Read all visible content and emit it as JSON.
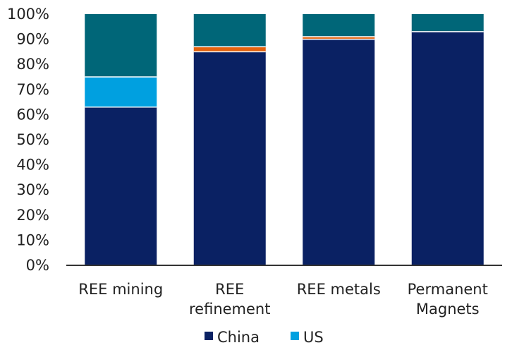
{
  "chart_data": {
    "type": "bar",
    "stacked": true,
    "categories": [
      [
        "REE mining"
      ],
      [
        "REE",
        "refinement"
      ],
      [
        "REE metals"
      ],
      [
        "Permanent",
        "Magnets"
      ]
    ],
    "series": [
      {
        "name": "China",
        "values": [
          63,
          85,
          90,
          93
        ],
        "color": "#0A2163"
      },
      {
        "name": "US",
        "values": [
          12,
          0,
          0,
          0
        ],
        "color": "#00A0E0"
      },
      {
        "values": [
          0,
          2,
          1,
          0
        ],
        "color": "#E2620F"
      },
      {
        "values": [
          25,
          13,
          9,
          7
        ],
        "color": "#006678"
      }
    ],
    "ylim": [
      0,
      100
    ],
    "yticks": [
      0,
      10,
      20,
      30,
      40,
      50,
      60,
      70,
      80,
      90,
      100
    ],
    "ytick_suffix": "%",
    "grid": false,
    "legend": {
      "position": "bottom",
      "entries": [
        "China",
        "US"
      ]
    },
    "axis_color": "#333333",
    "segment_separator_color": "#ffffff"
  }
}
